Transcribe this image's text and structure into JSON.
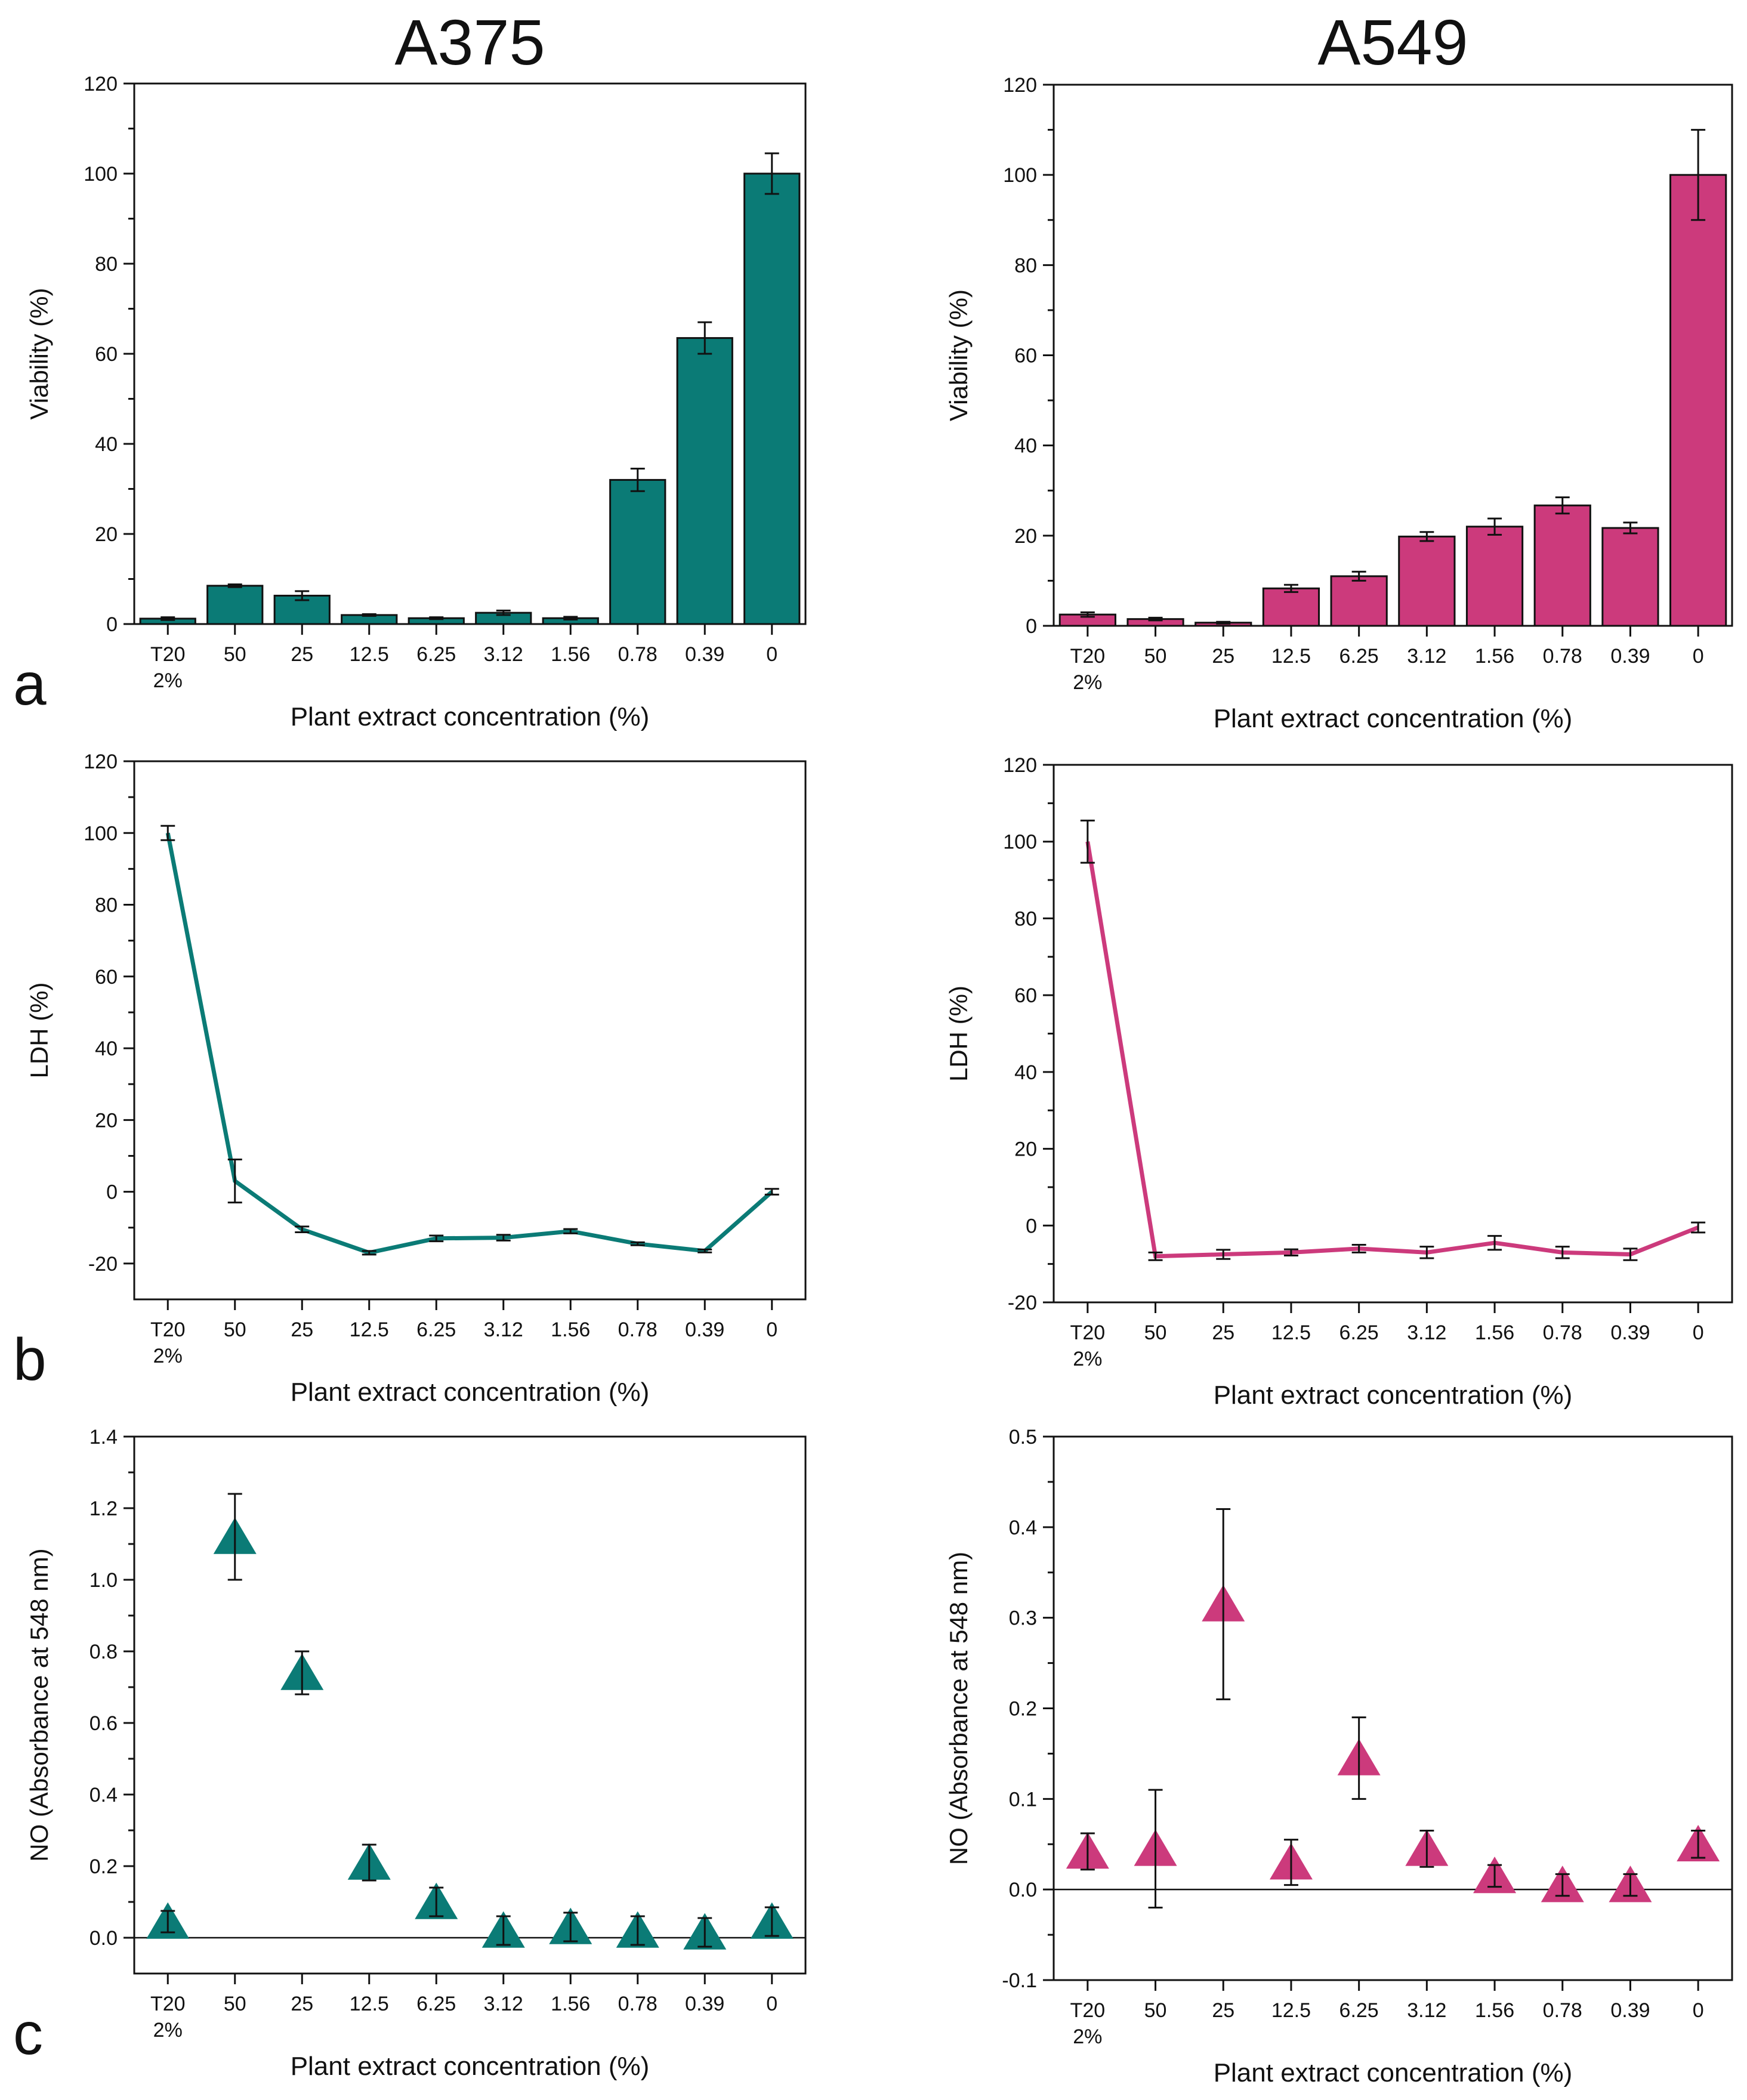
{
  "colors": {
    "A375": "#0b7b76",
    "A549": "#cc3a7c"
  },
  "chart_data": [
    {
      "type": "bar",
      "title": "A375",
      "panel_label": "a",
      "series_name": "A375",
      "color": "#0b7b76",
      "xlabel": "Plant extract concentration (%)",
      "ylabel": "Viability (%)",
      "categories": [
        "T20 2%",
        "50",
        "25",
        "12.5",
        "6.25",
        "3.12",
        "1.56",
        "0.78",
        "0.39",
        "0"
      ],
      "values": [
        1.2,
        8.5,
        6.3,
        2.0,
        1.3,
        2.5,
        1.3,
        32,
        63.5,
        100
      ],
      "errors": [
        0.3,
        0.3,
        1.0,
        0.2,
        0.2,
        0.5,
        0.3,
        2.5,
        3.5,
        4.5
      ],
      "ylim": [
        0,
        120
      ],
      "yticks": [
        0,
        20,
        40,
        60,
        80,
        100,
        120
      ],
      "zero_line": false
    },
    {
      "type": "bar",
      "title": "A549",
      "panel_label": "",
      "series_name": "A549",
      "color": "#cc3a7c",
      "xlabel": "Plant extract concentration (%)",
      "ylabel": "Viability (%)",
      "categories": [
        "T20 2%",
        "50",
        "25",
        "12.5",
        "6.25",
        "3.12",
        "1.56",
        "0.78",
        "0.39",
        "0"
      ],
      "values": [
        2.5,
        1.5,
        0.7,
        8.3,
        11,
        19.8,
        22,
        26.7,
        21.7,
        100
      ],
      "errors": [
        0.5,
        0.3,
        0.2,
        0.8,
        1.0,
        1.0,
        1.8,
        1.8,
        1.2,
        10
      ],
      "ylim": [
        0,
        120
      ],
      "yticks": [
        0,
        20,
        40,
        60,
        80,
        100,
        120
      ],
      "zero_line": false
    },
    {
      "type": "line",
      "title": "",
      "panel_label": "b",
      "series_name": "A375",
      "color": "#0b7b76",
      "xlabel": "Plant extract concentration (%)",
      "ylabel": "LDH (%)",
      "categories": [
        "T20 2%",
        "50",
        "25",
        "12.5",
        "6.25",
        "3.12",
        "1.56",
        "0.78",
        "0.39",
        "0"
      ],
      "values": [
        100,
        3,
        -10.5,
        -17,
        -13,
        -12.8,
        -11,
        -14.5,
        -16.5,
        0
      ],
      "errors": [
        2,
        6,
        0.8,
        0.5,
        0.8,
        0.8,
        0.6,
        0.4,
        0.4,
        0.8
      ],
      "ylim": [
        -30,
        120
      ],
      "yticks": [
        -20,
        0,
        20,
        40,
        60,
        80,
        100,
        120
      ],
      "zero_line": false
    },
    {
      "type": "line",
      "title": "",
      "panel_label": "",
      "series_name": "A549",
      "color": "#cc3a7c",
      "xlabel": "Plant extract concentration (%)",
      "ylabel": "LDH (%)",
      "categories": [
        "T20 2%",
        "50",
        "25",
        "12.5",
        "6.25",
        "3.12",
        "1.56",
        "0.78",
        "0.39",
        "0"
      ],
      "values": [
        100,
        -8,
        -7.5,
        -7,
        -6,
        -7,
        -4.5,
        -7,
        -7.5,
        -0.5
      ],
      "errors": [
        5.5,
        1,
        1.2,
        0.8,
        1,
        1.5,
        1.8,
        1.5,
        1.5,
        1.3
      ],
      "ylim": [
        -20,
        120
      ],
      "yticks": [
        -20,
        0,
        20,
        40,
        60,
        80,
        100,
        120
      ],
      "zero_line": false
    },
    {
      "type": "scatter",
      "title": "",
      "panel_label": "c",
      "series_name": "A375",
      "color": "#0b7b76",
      "xlabel": "Plant extract concentration (%)",
      "ylabel": "NO (Absorbance at 548 nm)",
      "categories": [
        "T20 2%",
        "50",
        "25",
        "12.5",
        "6.25",
        "3.12",
        "1.56",
        "0.78",
        "0.39",
        "0"
      ],
      "values": [
        0.045,
        1.12,
        0.74,
        0.21,
        0.1,
        0.02,
        0.03,
        0.02,
        0.015,
        0.045
      ],
      "errors": [
        0.03,
        0.12,
        0.06,
        0.05,
        0.04,
        0.04,
        0.04,
        0.04,
        0.04,
        0.04
      ],
      "ylim": [
        -0.1,
        1.4
      ],
      "yticks": [
        0.0,
        0.2,
        0.4,
        0.6,
        0.8,
        1.0,
        1.2,
        1.4
      ],
      "zero_line": true
    },
    {
      "type": "scatter",
      "title": "",
      "panel_label": "",
      "series_name": "A549",
      "color": "#cc3a7c",
      "xlabel": "Plant extract concentration (%)",
      "ylabel": "NO (Absorbance at 548 nm)",
      "categories": [
        "T20 2%",
        "50",
        "25",
        "12.5",
        "6.25",
        "3.12",
        "1.56",
        "0.78",
        "0.39",
        "0"
      ],
      "values": [
        0.042,
        0.045,
        0.315,
        0.03,
        0.145,
        0.045,
        0.015,
        0.005,
        0.005,
        0.05
      ],
      "errors": [
        0.02,
        0.065,
        0.105,
        0.025,
        0.045,
        0.02,
        0.012,
        0.012,
        0.012,
        0.015
      ],
      "ylim": [
        -0.1,
        0.5
      ],
      "yticks": [
        -0.1,
        0.0,
        0.1,
        0.2,
        0.3,
        0.4,
        0.5
      ],
      "zero_line": true
    }
  ]
}
